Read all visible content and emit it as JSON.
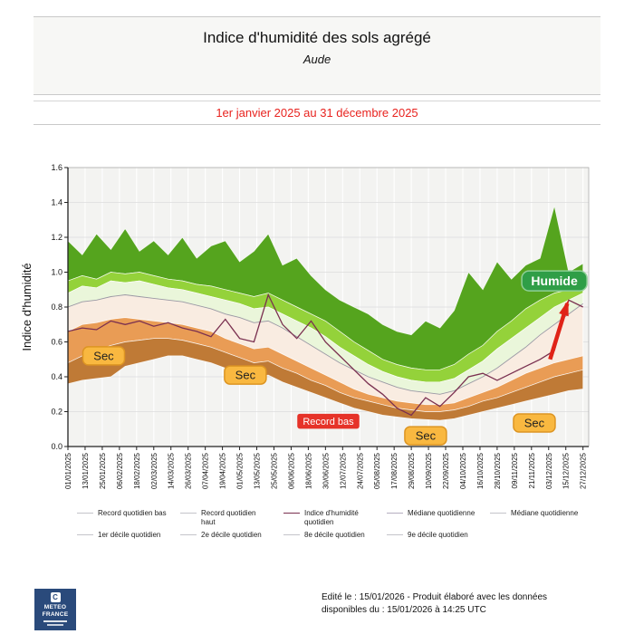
{
  "header": {
    "title": "Indice d'humidité des sols agrégé",
    "subtitle": "Aude"
  },
  "period": {
    "label": "1er janvier 2025 au 31 décembre 2025",
    "color": "#e8231f"
  },
  "chart_data": {
    "type": "area",
    "title": "Indice d'humidité des sols agrégé - Aude",
    "xlabel": "",
    "ylabel": "Indice d'humidité",
    "ylim": [
      0,
      1.6
    ],
    "y_tick_step": 0.2,
    "grid": true,
    "x_tick_labels": [
      "01/01/2025",
      "13/01/2025",
      "25/01/2025",
      "06/02/2025",
      "18/02/2025",
      "02/03/2025",
      "14/03/2025",
      "26/03/2025",
      "07/04/2025",
      "19/04/2025",
      "01/05/2025",
      "13/05/2025",
      "25/05/2025",
      "06/06/2025",
      "18/06/2025",
      "30/06/2025",
      "12/07/2025",
      "24/07/2025",
      "05/08/2025",
      "17/08/2025",
      "29/08/2025",
      "10/09/2025",
      "22/09/2025",
      "04/10/2025",
      "16/10/2025",
      "28/10/2025",
      "09/11/2025",
      "21/11/2025",
      "03/12/2025",
      "15/12/2025",
      "27/12/2025"
    ],
    "x_tick_days": [
      0,
      12,
      24,
      36,
      48,
      60,
      72,
      84,
      96,
      108,
      120,
      132,
      144,
      156,
      168,
      180,
      192,
      204,
      216,
      228,
      240,
      252,
      264,
      276,
      288,
      300,
      312,
      324,
      336,
      348,
      360
    ],
    "sample_days": [
      0,
      10,
      20,
      30,
      40,
      50,
      60,
      70,
      80,
      90,
      100,
      110,
      120,
      130,
      140,
      150,
      160,
      170,
      180,
      190,
      200,
      210,
      220,
      230,
      240,
      250,
      260,
      270,
      280,
      290,
      300,
      310,
      320,
      330,
      340,
      350,
      360
    ],
    "series": {
      "record_haut": {
        "label": "Record quotidien haut",
        "values": [
          1.18,
          1.1,
          1.22,
          1.13,
          1.25,
          1.12,
          1.18,
          1.1,
          1.2,
          1.08,
          1.15,
          1.18,
          1.06,
          1.12,
          1.22,
          1.04,
          1.08,
          0.98,
          0.9,
          0.84,
          0.8,
          0.76,
          0.7,
          0.66,
          0.64,
          0.72,
          0.68,
          0.78,
          1.0,
          0.9,
          1.06,
          0.96,
          1.04,
          1.08,
          1.38,
          1.0,
          1.05
        ]
      },
      "d9": {
        "label": "9e décile quotidien",
        "values": [
          0.95,
          0.98,
          0.96,
          1.0,
          0.99,
          1.0,
          0.98,
          0.96,
          0.95,
          0.93,
          0.92,
          0.9,
          0.88,
          0.86,
          0.88,
          0.84,
          0.8,
          0.76,
          0.72,
          0.66,
          0.6,
          0.55,
          0.5,
          0.47,
          0.45,
          0.44,
          0.44,
          0.47,
          0.53,
          0.58,
          0.66,
          0.72,
          0.79,
          0.84,
          0.88,
          0.9,
          0.95
        ]
      },
      "d8": {
        "label": "8e décile quotidien",
        "values": [
          0.88,
          0.92,
          0.91,
          0.95,
          0.94,
          0.95,
          0.93,
          0.91,
          0.9,
          0.88,
          0.86,
          0.84,
          0.82,
          0.79,
          0.8,
          0.76,
          0.72,
          0.68,
          0.63,
          0.57,
          0.52,
          0.47,
          0.43,
          0.4,
          0.38,
          0.37,
          0.37,
          0.39,
          0.44,
          0.49,
          0.56,
          0.62,
          0.68,
          0.74,
          0.8,
          0.84,
          0.88
        ]
      },
      "mediane": {
        "label": "Médiane quotidienne",
        "values": [
          0.8,
          0.83,
          0.84,
          0.86,
          0.87,
          0.86,
          0.85,
          0.84,
          0.83,
          0.81,
          0.79,
          0.76,
          0.74,
          0.71,
          0.72,
          0.68,
          0.63,
          0.58,
          0.53,
          0.48,
          0.44,
          0.4,
          0.37,
          0.34,
          0.32,
          0.31,
          0.3,
          0.32,
          0.36,
          0.4,
          0.45,
          0.51,
          0.57,
          0.64,
          0.7,
          0.76,
          0.82
        ],
        "line_color": "#9a98a2"
      },
      "d2": {
        "label": "2e décile quotidien",
        "values": [
          0.66,
          0.7,
          0.71,
          0.73,
          0.74,
          0.73,
          0.72,
          0.71,
          0.7,
          0.68,
          0.66,
          0.62,
          0.59,
          0.56,
          0.57,
          0.53,
          0.49,
          0.45,
          0.41,
          0.37,
          0.33,
          0.3,
          0.28,
          0.26,
          0.25,
          0.24,
          0.24,
          0.25,
          0.28,
          0.31,
          0.34,
          0.38,
          0.42,
          0.45,
          0.48,
          0.5,
          0.52
        ]
      },
      "d1": {
        "label": "1er décile quotidien",
        "values": [
          0.48,
          0.52,
          0.55,
          0.58,
          0.6,
          0.61,
          0.62,
          0.62,
          0.61,
          0.59,
          0.57,
          0.54,
          0.51,
          0.48,
          0.49,
          0.45,
          0.42,
          0.38,
          0.35,
          0.31,
          0.28,
          0.26,
          0.24,
          0.22,
          0.21,
          0.2,
          0.2,
          0.21,
          0.23,
          0.26,
          0.28,
          0.31,
          0.34,
          0.37,
          0.4,
          0.42,
          0.44
        ]
      },
      "record_bas": {
        "label": "Record quotidien bas",
        "values": [
          0.36,
          0.38,
          0.39,
          0.4,
          0.46,
          0.48,
          0.5,
          0.52,
          0.52,
          0.5,
          0.48,
          0.45,
          0.43,
          0.4,
          0.41,
          0.37,
          0.34,
          0.31,
          0.28,
          0.25,
          0.22,
          0.2,
          0.18,
          0.17,
          0.16,
          0.155,
          0.15,
          0.16,
          0.18,
          0.2,
          0.22,
          0.24,
          0.26,
          0.28,
          0.3,
          0.32,
          0.33
        ]
      },
      "indice": {
        "label": "Indice d'humidité quotidien",
        "values": [
          0.66,
          0.68,
          0.67,
          0.72,
          0.7,
          0.72,
          0.69,
          0.71,
          0.68,
          0.66,
          0.63,
          0.73,
          0.62,
          0.6,
          0.87,
          0.7,
          0.62,
          0.72,
          0.6,
          0.52,
          0.44,
          0.36,
          0.3,
          0.22,
          0.18,
          0.28,
          0.23,
          0.31,
          0.4,
          0.42,
          0.38,
          0.42,
          0.46,
          0.5,
          0.55,
          0.84,
          0.8
        ],
        "line_color": "#7a3050"
      }
    },
    "bands": [
      {
        "top": "record_haut",
        "bottom": "d9",
        "color": "#55a41e",
        "name": "band-record-haut-9e-decile"
      },
      {
        "top": "d9",
        "bottom": "d8",
        "color": "#94d23a",
        "name": "band-9e-8e-decile"
      },
      {
        "top": "d8",
        "bottom": "mediane",
        "color": "#eaf6da",
        "name": "band-8e-decile-mediane"
      },
      {
        "top": "mediane",
        "bottom": "d2",
        "color": "#f9ece1",
        "name": "band-mediane-2e-decile"
      },
      {
        "top": "d2",
        "bottom": "d1",
        "color": "#e99c55",
        "name": "band-2e-1er-decile"
      },
      {
        "top": "d1",
        "bottom": "record_bas",
        "color": "#bf7a36",
        "name": "band-1er-decile-record-bas"
      }
    ],
    "annotations": [
      {
        "text": "Sec",
        "type": "dry",
        "day": 25,
        "value": 0.52
      },
      {
        "text": "Sec",
        "type": "dry",
        "day": 124,
        "value": 0.41
      },
      {
        "text": "Record bas",
        "type": "record-low",
        "day": 182,
        "value": 0.145
      },
      {
        "text": "Sec",
        "type": "dry",
        "day": 250,
        "value": 0.062
      },
      {
        "text": "Sec",
        "type": "dry",
        "day": 326,
        "value": 0.135
      },
      {
        "text": "Humide",
        "type": "wet",
        "day": 340,
        "value": 0.95
      }
    ],
    "arrow": {
      "from_day": 337,
      "from_value": 0.5,
      "to_day": 349,
      "to_value": 0.82,
      "color": "#e02318"
    },
    "badge_colors": {
      "dry_bg": "#f9b840",
      "dry_border": "#dd9522",
      "dry_text": "#222222",
      "record_bg": "#e63329",
      "record_text": "#ffffff",
      "wet_bg": "#2f9e47",
      "wet_border": "#8fcf96",
      "wet_text": "#ffffff"
    }
  },
  "legend": {
    "rows": [
      [
        {
          "label": "Record quotidien bas",
          "color": "#c4c4ca"
        },
        {
          "label": "Record quotidien haut",
          "color": "#c4c4ca"
        },
        {
          "label": "Indice d'humidité quotidien",
          "color": "#7a3050"
        },
        {
          "label": "Médiane quotidienne",
          "color": "#b5aec0"
        },
        {
          "label": "Médiane quotidienne",
          "color": "#c4c4ca"
        }
      ],
      [
        {
          "label": "1er décile quotidien",
          "color": "#c4c4ca"
        },
        {
          "label": "2e décile quotidien",
          "color": "#c4c4ca"
        },
        {
          "label": "8e décile quotidien",
          "color": "#c4c4ca"
        },
        {
          "label": "9e décile quotidien",
          "color": "#c4c4ca"
        }
      ]
    ]
  },
  "footer": {
    "line1": "Edité le : 15/01/2026 - Produit élaboré avec les données",
    "line2": "disponibles du : 15/01/2026 à 14:25 UTC"
  },
  "logo": {
    "glyph": "C",
    "brand_line1": "METEO",
    "brand_line2": "FRANCE"
  }
}
